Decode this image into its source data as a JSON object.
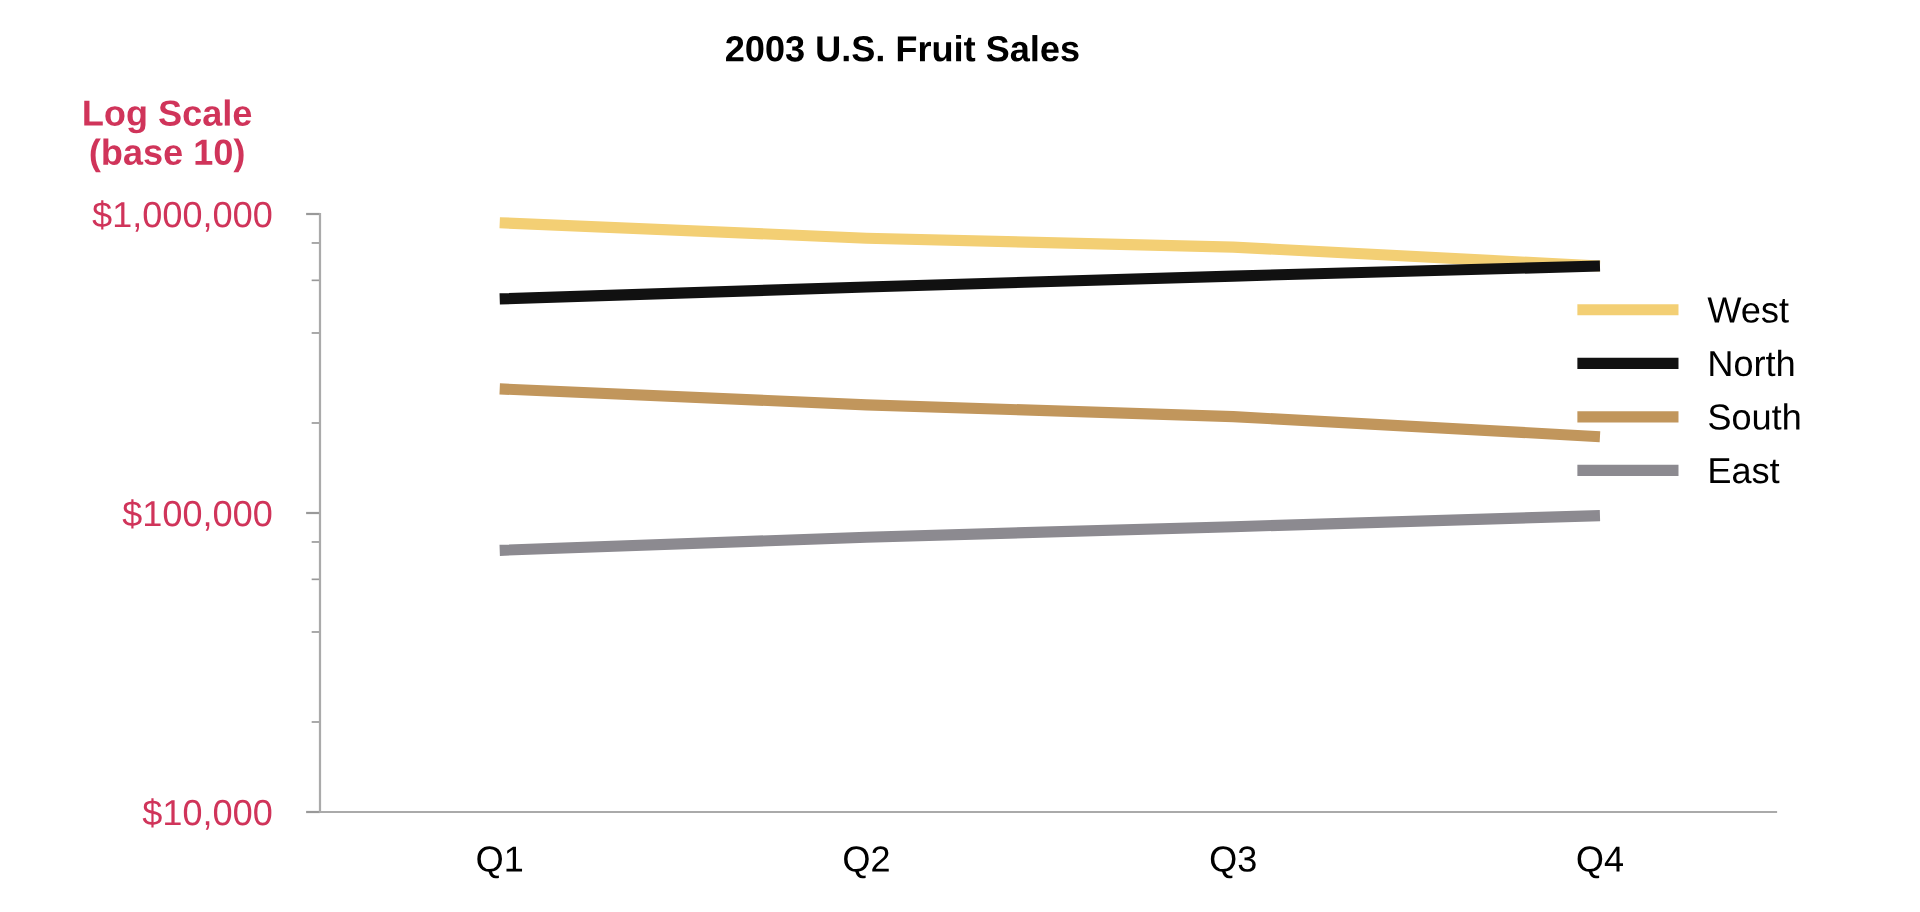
{
  "chart_data": {
    "type": "line",
    "title": "2003 U.S. Fruit Sales",
    "ylabel": "Log Scale\n(base 10)",
    "categories": [
      "Q1",
      "Q2",
      "Q3",
      "Q4"
    ],
    "series": [
      {
        "name": "West",
        "color": "#f3cf74",
        "values": [
          935000,
          830000,
          775000,
          670000
        ]
      },
      {
        "name": "North",
        "color": "#111111",
        "values": [
          520000,
          570000,
          620000,
          670000
        ]
      },
      {
        "name": "South",
        "color": "#c1965c",
        "values": [
          260000,
          230000,
          210000,
          180000
        ]
      },
      {
        "name": "East",
        "color": "#8c8a90",
        "values": [
          75000,
          83000,
          90000,
          98000
        ]
      }
    ],
    "log": "y",
    "ylim": [
      10000,
      1000000
    ],
    "yticks": [
      {
        "value": 10000,
        "label": "$10,000"
      },
      {
        "value": 100000,
        "label": "$100,000"
      },
      {
        "value": 1000000,
        "label": "$1,000,000"
      }
    ],
    "grid": false,
    "legend": "right",
    "marker": "none",
    "line_style": "solid"
  }
}
